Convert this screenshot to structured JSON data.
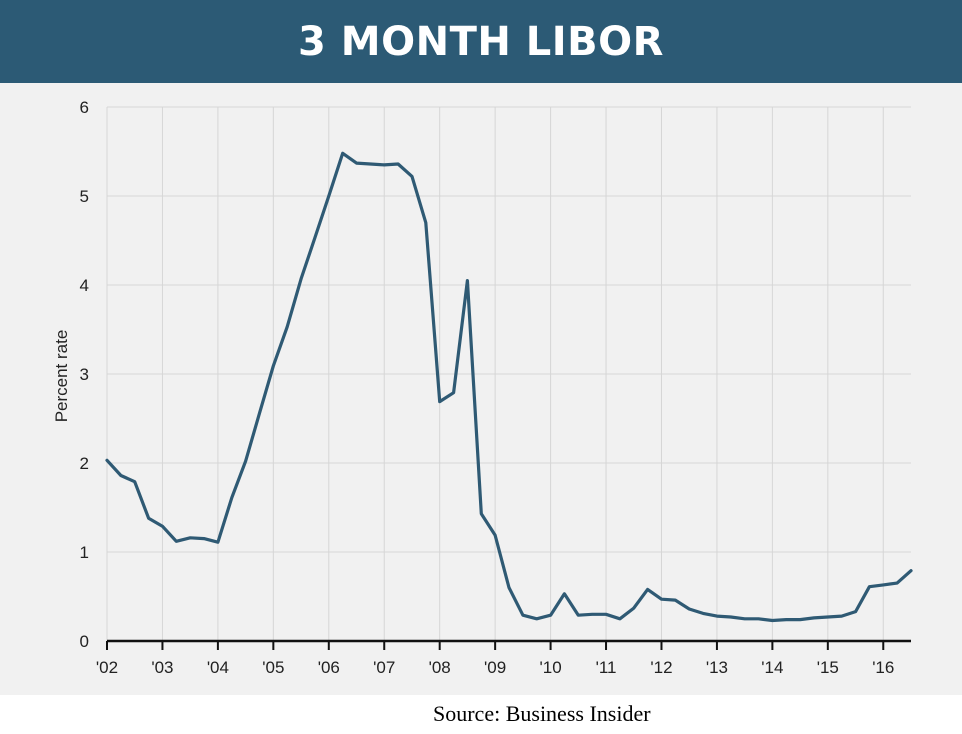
{
  "banner": {
    "title": "3 MONTH LIBOR"
  },
  "source": "Source: Business Insider",
  "colors": {
    "banner": "#2c5a75",
    "line": "#2f5a74",
    "panel": "#f1f1f1",
    "grid": "#d6d6d6",
    "axis": "#111111"
  },
  "chart_data": {
    "type": "line",
    "title": "3 MONTH LIBOR",
    "xlabel": "",
    "ylabel": "Percent rate",
    "xlim": [
      2002,
      2016.5
    ],
    "ylim": [
      0,
      6
    ],
    "x_ticks": [
      {
        "value": 2002,
        "label": "'02"
      },
      {
        "value": 2003,
        "label": "'03"
      },
      {
        "value": 2004,
        "label": "'04"
      },
      {
        "value": 2005,
        "label": "'05"
      },
      {
        "value": 2006,
        "label": "'06"
      },
      {
        "value": 2007,
        "label": "'07"
      },
      {
        "value": 2008,
        "label": "'08"
      },
      {
        "value": 2009,
        "label": "'09"
      },
      {
        "value": 2010,
        "label": "'10"
      },
      {
        "value": 2011,
        "label": "'11"
      },
      {
        "value": 2012,
        "label": "'12"
      },
      {
        "value": 2013,
        "label": "'13"
      },
      {
        "value": 2014,
        "label": "'14"
      },
      {
        "value": 2015,
        "label": "'15"
      },
      {
        "value": 2016,
        "label": "'16"
      }
    ],
    "y_ticks": [
      0,
      1,
      2,
      3,
      4,
      5,
      6
    ],
    "grid": true,
    "series": [
      {
        "points": [
          [
            2002.0,
            2.03
          ],
          [
            2002.25,
            1.86
          ],
          [
            2002.5,
            1.79
          ],
          [
            2002.75,
            1.38
          ],
          [
            2003.0,
            1.29
          ],
          [
            2003.25,
            1.12
          ],
          [
            2003.5,
            1.16
          ],
          [
            2003.75,
            1.15
          ],
          [
            2004.0,
            1.11
          ],
          [
            2004.25,
            1.61
          ],
          [
            2004.5,
            2.02
          ],
          [
            2004.75,
            2.56
          ],
          [
            2005.0,
            3.09
          ],
          [
            2005.25,
            3.53
          ],
          [
            2005.5,
            4.07
          ],
          [
            2005.75,
            4.53
          ],
          [
            2006.0,
            5.0
          ],
          [
            2006.25,
            5.48
          ],
          [
            2006.5,
            5.37
          ],
          [
            2006.75,
            5.36
          ],
          [
            2007.0,
            5.35
          ],
          [
            2007.25,
            5.36
          ],
          [
            2007.5,
            5.22
          ],
          [
            2007.75,
            4.7
          ],
          [
            2008.0,
            2.69
          ],
          [
            2008.25,
            2.79
          ],
          [
            2008.5,
            4.05
          ],
          [
            2008.75,
            1.43
          ],
          [
            2009.0,
            1.19
          ],
          [
            2009.25,
            0.6
          ],
          [
            2009.5,
            0.29
          ],
          [
            2009.75,
            0.25
          ],
          [
            2010.0,
            0.29
          ],
          [
            2010.25,
            0.53
          ],
          [
            2010.5,
            0.29
          ],
          [
            2010.75,
            0.3
          ],
          [
            2011.0,
            0.3
          ],
          [
            2011.25,
            0.25
          ],
          [
            2011.5,
            0.37
          ],
          [
            2011.75,
            0.58
          ],
          [
            2012.0,
            0.47
          ],
          [
            2012.25,
            0.46
          ],
          [
            2012.5,
            0.36
          ],
          [
            2012.75,
            0.31
          ],
          [
            2013.0,
            0.28
          ],
          [
            2013.25,
            0.27
          ],
          [
            2013.5,
            0.25
          ],
          [
            2013.75,
            0.25
          ],
          [
            2014.0,
            0.23
          ],
          [
            2014.25,
            0.24
          ],
          [
            2014.5,
            0.24
          ],
          [
            2014.75,
            0.26
          ],
          [
            2015.0,
            0.27
          ],
          [
            2015.25,
            0.28
          ],
          [
            2015.5,
            0.33
          ],
          [
            2015.75,
            0.61
          ],
          [
            2016.0,
            0.63
          ],
          [
            2016.25,
            0.65
          ],
          [
            2016.5,
            0.79
          ]
        ]
      }
    ]
  }
}
